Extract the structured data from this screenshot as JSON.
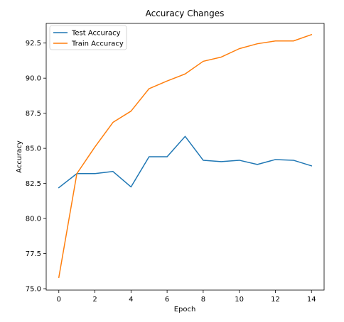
{
  "chart_data": {
    "type": "line",
    "title": "Accuracy Changes",
    "xlabel": "Epoch",
    "ylabel": "Accuracy",
    "xlim": [
      -0.7,
      14.7
    ],
    "ylim": [
      74.9,
      93.9
    ],
    "x_ticks": [
      0,
      2,
      4,
      6,
      8,
      10,
      12,
      14
    ],
    "y_ticks": [
      75.0,
      77.5,
      80.0,
      82.5,
      85.0,
      87.5,
      90.0,
      92.5
    ],
    "y_tick_labels": [
      "75.0",
      "77.5",
      "80.0",
      "82.5",
      "85.0",
      "87.5",
      "90.0",
      "92.5"
    ],
    "grid": false,
    "legend_position": "top-left",
    "x": [
      0,
      1,
      2,
      3,
      4,
      5,
      6,
      7,
      8,
      9,
      10,
      11,
      12,
      13,
      14
    ],
    "series": [
      {
        "name": "Test Accuracy",
        "color": "#1f77b4",
        "values": [
          82.2,
          83.2,
          83.2,
          83.35,
          82.25,
          84.4,
          84.4,
          85.85,
          84.15,
          84.05,
          84.15,
          83.85,
          84.2,
          84.15,
          83.75
        ]
      },
      {
        "name": "Train Accuracy",
        "color": "#ff7f0e",
        "values": [
          75.8,
          83.2,
          85.1,
          86.85,
          87.65,
          89.25,
          89.8,
          90.3,
          91.2,
          91.5,
          92.1,
          92.45,
          92.65,
          92.65,
          93.1
        ]
      }
    ]
  }
}
